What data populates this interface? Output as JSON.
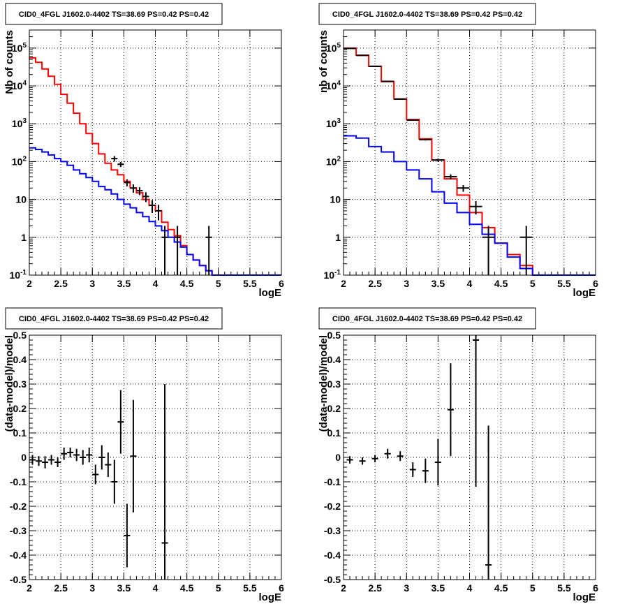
{
  "panels": [
    {
      "id": "counts-left",
      "title": "CID0_4FGL J1602.0-4402 TS=38.69 PS=0.42 PS=0.42",
      "chart_data": {
        "type": "line",
        "xlabel": "logE",
        "ylabel": "Nb of counts",
        "xlim": [
          2,
          6
        ],
        "ylim": [
          0.1,
          300000
        ],
        "yscale": "log",
        "grid": true,
        "x_ticks": [
          "2",
          "2.5",
          "3",
          "3.5",
          "4",
          "4.5",
          "5",
          "5.5",
          "6"
        ],
        "y_ticks": [
          "10^-1",
          "1",
          "10",
          "10^2",
          "10^3",
          "10^4",
          "10^5"
        ],
        "bin_edges": [
          2.0,
          2.1,
          2.2,
          2.3,
          2.4,
          2.5,
          2.6,
          2.7,
          2.8,
          2.9,
          3.0,
          3.1,
          3.2,
          3.3,
          3.4,
          3.5,
          3.6,
          3.7,
          3.8,
          3.9,
          4.0,
          4.1,
          4.2,
          4.3,
          4.4,
          4.5,
          4.6,
          4.7,
          4.8,
          4.9,
          5.0,
          5.1,
          5.2,
          5.3,
          5.4,
          5.5,
          5.6,
          5.7,
          5.8,
          5.9,
          6.0
        ],
        "series": [
          {
            "color": "#ff0000",
            "kind": "step",
            "values": [
              55000,
              42000,
              28000,
              18000,
              11000,
              6000,
              3500,
              1900,
              1000,
              550,
              300,
              160,
              90,
              60,
              45,
              30,
              20,
              15,
              10,
              7,
              5,
              2.5,
              1.6,
              1.1,
              0.6,
              0.35,
              0.25,
              0.18,
              0.13,
              0.1,
              0.1,
              0.1,
              0.1,
              0.1,
              0.1,
              0.1,
              0.1,
              0.1,
              0.1,
              0.1
            ]
          },
          {
            "color": "#0000ff",
            "kind": "step",
            "values": [
              230,
              210,
              180,
              150,
              120,
              100,
              80,
              60,
              48,
              38,
              30,
              22,
              18,
              14,
              10,
              7.5,
              6,
              4.5,
              3.5,
              2.6,
              2,
              1.5,
              1,
              0.75,
              0.55,
              0.35,
              0.25,
              0.18,
              0.13,
              0.1,
              0.1,
              0.1,
              0.1,
              0.1,
              0.1,
              0.1,
              0.1,
              0.1,
              0.1,
              0.1
            ]
          },
          {
            "color": "#000000",
            "kind": "points",
            "points": [
              {
                "x": 3.35,
                "y": 120,
                "ylo": 100,
                "yhi": 140
              },
              {
                "x": 3.45,
                "y": 85,
                "ylo": 72,
                "yhi": 98
              },
              {
                "x": 3.55,
                "y": 28,
                "ylo": 22,
                "yhi": 34
              },
              {
                "x": 3.65,
                "y": 20,
                "ylo": 15,
                "yhi": 25
              },
              {
                "x": 3.75,
                "y": 17,
                "ylo": 13,
                "yhi": 21
              },
              {
                "x": 3.85,
                "y": 12,
                "ylo": 8.5,
                "yhi": 15.5
              },
              {
                "x": 3.95,
                "y": 7,
                "ylo": 4.4,
                "yhi": 9.6
              },
              {
                "x": 4.05,
                "y": 5,
                "ylo": 2.8,
                "yhi": 7.2
              },
              {
                "x": 4.15,
                "y": 1,
                "ylo": 0.1,
                "yhi": 2
              },
              {
                "x": 4.35,
                "y": 1,
                "ylo": 0.1,
                "yhi": 2
              },
              {
                "x": 4.85,
                "y": 1,
                "ylo": 0.1,
                "yhi": 2
              }
            ]
          }
        ]
      }
    },
    {
      "id": "counts-right",
      "title": "CID0_4FGL J1602.0-4402 TS=38.69 PS=0.42 PS=0.42",
      "chart_data": {
        "type": "line",
        "xlabel": "logE",
        "ylabel": "nb of counts",
        "xlim": [
          2,
          6
        ],
        "ylim": [
          0.1,
          300000
        ],
        "yscale": "log",
        "grid": true,
        "x_ticks": [
          "2",
          "2.5",
          "3",
          "3.5",
          "4",
          "4.5",
          "5",
          "5.5",
          "6"
        ],
        "y_ticks": [
          "10^-1",
          "1",
          "10",
          "10^2",
          "10^3",
          "10^4",
          "10^5"
        ],
        "bin_edges": [
          2.0,
          2.2,
          2.4,
          2.6,
          2.8,
          3.0,
          3.2,
          3.4,
          3.6,
          3.8,
          4.0,
          4.2,
          4.4,
          4.6,
          4.8,
          5.0,
          5.2,
          5.4,
          5.6,
          5.8,
          6.0
        ],
        "series": [
          {
            "color": "#ff0000",
            "kind": "step",
            "values": [
              100000,
              65000,
              33000,
              13000,
              4500,
              1300,
              400,
              110,
              35,
              13,
              4.5,
              1.8,
              0.7,
              0.35,
              0.18,
              0.1,
              0.1,
              0.1,
              0.1,
              0.1
            ]
          },
          {
            "color": "#0000ff",
            "kind": "step",
            "values": [
              480,
              420,
              250,
              180,
              100,
              60,
              35,
              16,
              8,
              4.5,
              2.2,
              1.2,
              0.7,
              0.3,
              0.15,
              0.1,
              0.1,
              0.1,
              0.1,
              0.1
            ]
          },
          {
            "color": "#000000",
            "kind": "points",
            "points": [
              {
                "x": 2.1,
                "y": 98000,
                "ylo": 97000,
                "yhi": 99000,
                "xerr": 0.1
              },
              {
                "x": 2.3,
                "y": 64000,
                "ylo": 63000,
                "yhi": 65000,
                "xerr": 0.1
              },
              {
                "x": 2.5,
                "y": 33000,
                "ylo": 32500,
                "yhi": 33500,
                "xerr": 0.1
              },
              {
                "x": 2.7,
                "y": 13200,
                "ylo": 13000,
                "yhi": 13400,
                "xerr": 0.1
              },
              {
                "x": 2.9,
                "y": 4500,
                "ylo": 4400,
                "yhi": 4600,
                "xerr": 0.1
              },
              {
                "x": 3.1,
                "y": 1250,
                "ylo": 1200,
                "yhi": 1300,
                "xerr": 0.1
              },
              {
                "x": 3.3,
                "y": 380,
                "ylo": 360,
                "yhi": 400,
                "xerr": 0.1
              },
              {
                "x": 3.5,
                "y": 110,
                "ylo": 100,
                "yhi": 120,
                "xerr": 0.1
              },
              {
                "x": 3.7,
                "y": 40,
                "ylo": 34,
                "yhi": 46,
                "xerr": 0.1
              },
              {
                "x": 3.9,
                "y": 20,
                "ylo": 16,
                "yhi": 24,
                "xerr": 0.1
              },
              {
                "x": 4.1,
                "y": 6.5,
                "ylo": 4,
                "yhi": 9,
                "xerr": 0.1
              },
              {
                "x": 4.3,
                "y": 1,
                "ylo": 0.1,
                "yhi": 2,
                "xerr": 0.1
              },
              {
                "x": 4.9,
                "y": 1,
                "ylo": 0.1,
                "yhi": 2,
                "xerr": 0.1
              }
            ]
          }
        ]
      }
    },
    {
      "id": "residual-left",
      "title": "CID0_4FGL J1602.0-4402 TS=38.69 PS=0.42 PS=0.42",
      "chart_data": {
        "type": "scatter",
        "xlabel": "logE",
        "ylabel": "(data-model)/model",
        "xlim": [
          2,
          6
        ],
        "ylim": [
          -0.5,
          0.5
        ],
        "grid": true,
        "x_ticks": [
          "2",
          "2.5",
          "3",
          "3.5",
          "4",
          "4.5",
          "5",
          "5.5",
          "6"
        ],
        "y_ticks": [
          "-0.5",
          "-0.4",
          "-0.3",
          "-0.2",
          "-0.1",
          "0",
          "0.1",
          "0.2",
          "0.3",
          "0.4",
          "0.5"
        ],
        "series": [
          {
            "color": "#000000",
            "points": [
              {
                "x": 2.05,
                "y": -0.01,
                "err": 0.02
              },
              {
                "x": 2.15,
                "y": -0.015,
                "err": 0.02
              },
              {
                "x": 2.25,
                "y": -0.02,
                "err": 0.025
              },
              {
                "x": 2.35,
                "y": -0.01,
                "err": 0.02
              },
              {
                "x": 2.45,
                "y": -0.02,
                "err": 0.02
              },
              {
                "x": 2.55,
                "y": 0.015,
                "err": 0.025
              },
              {
                "x": 2.65,
                "y": 0.02,
                "err": 0.02
              },
              {
                "x": 2.75,
                "y": 0.01,
                "err": 0.025
              },
              {
                "x": 2.85,
                "y": 0.0,
                "err": 0.03
              },
              {
                "x": 2.95,
                "y": 0.01,
                "err": 0.03
              },
              {
                "x": 3.05,
                "y": -0.07,
                "err": 0.04
              },
              {
                "x": 3.15,
                "y": 0.0,
                "err": 0.05
              },
              {
                "x": 3.25,
                "y": -0.03,
                "err": 0.05
              },
              {
                "x": 3.35,
                "y": -0.1,
                "err": 0.09
              },
              {
                "x": 3.45,
                "y": 0.145,
                "err": 0.13
              },
              {
                "x": 3.55,
                "y": -0.32,
                "err": 0.13
              },
              {
                "x": 3.65,
                "y": 0.005,
                "err": 0.23
              },
              {
                "x": 4.15,
                "y": -0.35,
                "err": 0.65
              }
            ]
          }
        ]
      }
    },
    {
      "id": "residual-right",
      "title": "CID0_4FGL J1602.0-4402 TS=38.69 PS=0.42 PS=0.42",
      "chart_data": {
        "type": "scatter",
        "xlabel": "logE",
        "ylabel": "(data-model)/model",
        "xlim": [
          2,
          6
        ],
        "ylim": [
          -0.5,
          0.5
        ],
        "grid": true,
        "x_ticks": [
          "2",
          "2.5",
          "3",
          "3.5",
          "4",
          "4.5",
          "5",
          "5.5",
          "6"
        ],
        "y_ticks": [
          "-0.5",
          "-0.4",
          "-0.3",
          "-0.2",
          "-0.1",
          "0",
          "0.1",
          "0.2",
          "0.3",
          "0.4",
          "0.5"
        ],
        "series": [
          {
            "color": "#000000",
            "points": [
              {
                "x": 2.1,
                "y": -0.01,
                "err": 0.015
              },
              {
                "x": 2.3,
                "y": -0.015,
                "err": 0.015
              },
              {
                "x": 2.5,
                "y": -0.005,
                "err": 0.015
              },
              {
                "x": 2.7,
                "y": 0.015,
                "err": 0.02
              },
              {
                "x": 2.9,
                "y": 0.005,
                "err": 0.02
              },
              {
                "x": 3.1,
                "y": -0.05,
                "err": 0.03
              },
              {
                "x": 3.3,
                "y": -0.055,
                "err": 0.05
              },
              {
                "x": 3.5,
                "y": -0.02,
                "err": 0.095
              },
              {
                "x": 3.7,
                "y": 0.195,
                "err": 0.19
              },
              {
                "x": 4.1,
                "y": 0.48,
                "err": 0.6
              },
              {
                "x": 4.3,
                "y": -0.44,
                "err": 0.57
              }
            ]
          }
        ]
      }
    }
  ]
}
